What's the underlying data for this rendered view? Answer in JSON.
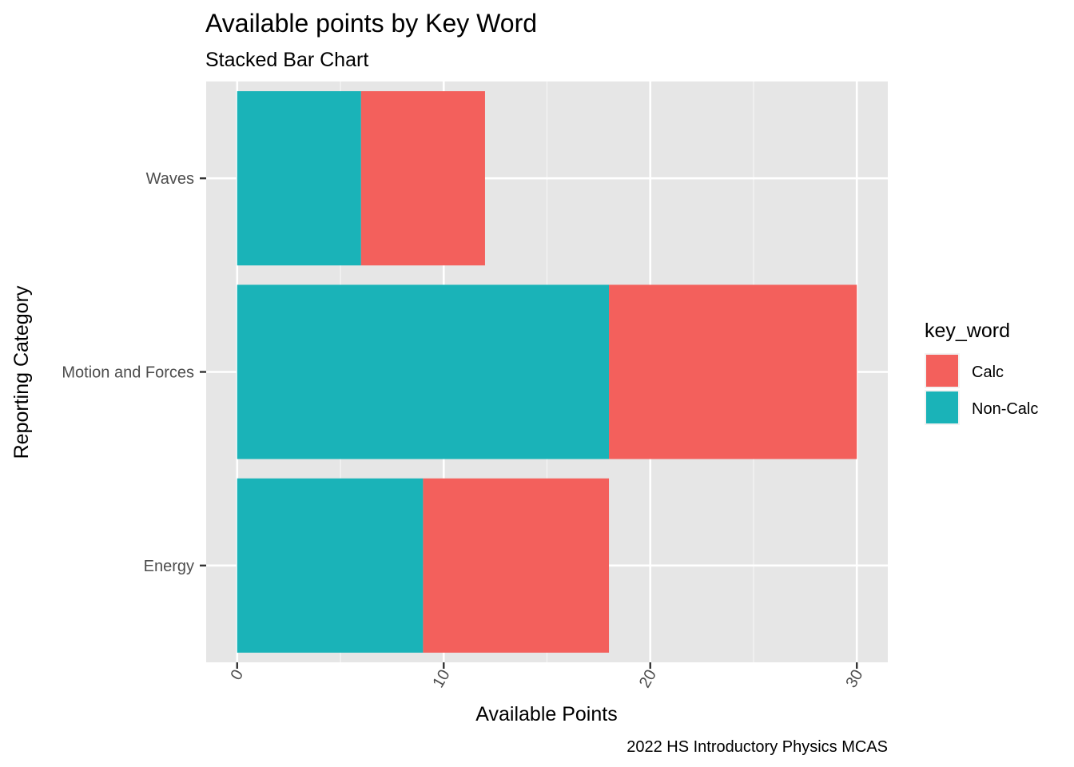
{
  "chart_data": {
    "type": "bar",
    "orientation": "horizontal",
    "stacked": true,
    "title": "Available points by Key Word",
    "subtitle": "Stacked Bar Chart",
    "xlabel": "Available Points",
    "ylabel": "Reporting Category",
    "caption": "2022 HS Introductory Physics MCAS",
    "categories": [
      "Energy",
      "Motion and Forces",
      "Waves"
    ],
    "series": [
      {
        "name": "Non-Calc",
        "values": [
          9,
          18,
          6
        ],
        "color": "#1AB3B8"
      },
      {
        "name": "Calc",
        "values": [
          9,
          12,
          6
        ],
        "color": "#F3605C"
      }
    ],
    "xlim": [
      -1.5,
      31.5
    ],
    "xticks": [
      0,
      10,
      20,
      30
    ],
    "xtick_labels": [
      "0",
      "10",
      "20",
      "30"
    ],
    "legend": {
      "title": "key_word",
      "placement": "right",
      "entries": [
        {
          "label": "Calc",
          "color": "#F3605C"
        },
        {
          "label": "Non-Calc",
          "color": "#1AB3B8"
        }
      ]
    },
    "grid": true,
    "panel_background": "#E6E6E6"
  }
}
